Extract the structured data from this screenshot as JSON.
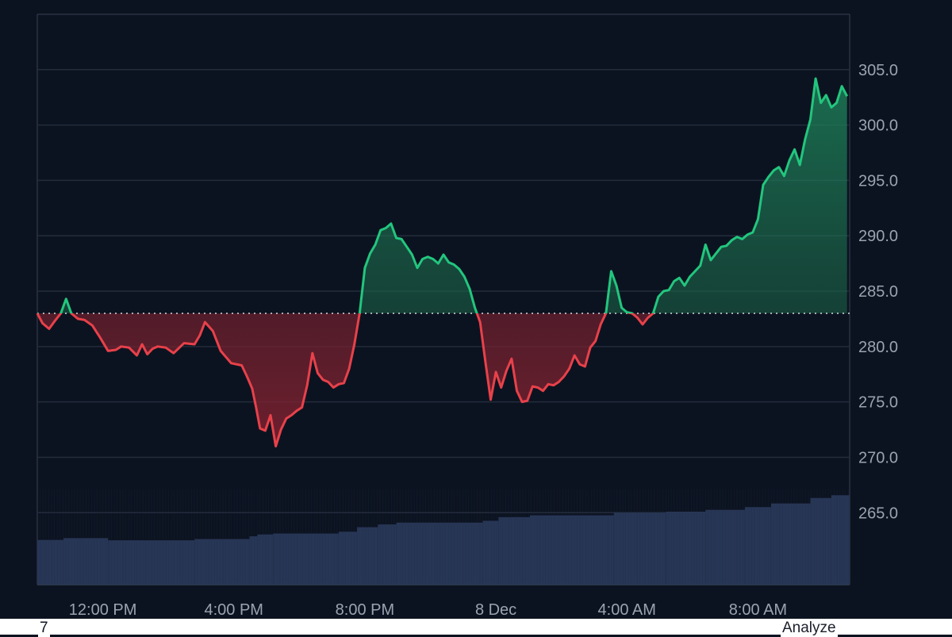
{
  "chart_data": {
    "type": "area",
    "baseline": 283.0,
    "ylim": [
      258.5,
      310.0
    ],
    "yticks": [
      265.0,
      270.0,
      275.0,
      280.0,
      285.0,
      290.0,
      295.0,
      300.0,
      305.0
    ],
    "xticks": [
      {
        "label": "12:00 PM",
        "t": 2.5
      },
      {
        "label": "4:00 PM",
        "t": 7.5
      },
      {
        "label": "8:00 PM",
        "t": 12.5
      },
      {
        "label": "8 Dec",
        "t": 17.5
      },
      {
        "label": "4:00 AM",
        "t": 22.5
      },
      {
        "label": "8:00 AM",
        "t": 27.5
      }
    ],
    "xrange": [
      0,
      31
    ],
    "series": [
      {
        "t": [
          0.0,
          0.2,
          0.45,
          0.7,
          0.9,
          1.1,
          1.3,
          1.55,
          1.8,
          2.1,
          2.4,
          2.7,
          3.0,
          3.2,
          3.5,
          3.8,
          4.0,
          4.2,
          4.4,
          4.6,
          4.9,
          5.2,
          5.6,
          6.0,
          6.2,
          6.4,
          6.7,
          7.0,
          7.4,
          7.8,
          8.0,
          8.2,
          8.35,
          8.5,
          8.7,
          8.9,
          9.1,
          9.3,
          9.5,
          9.7,
          9.9,
          10.1,
          10.3,
          10.5,
          10.7,
          10.9,
          11.1,
          11.3,
          11.5,
          11.7,
          11.9,
          12.1,
          12.3,
          12.5,
          12.7,
          12.9,
          13.1,
          13.3,
          13.5,
          13.7,
          13.9,
          14.1,
          14.3,
          14.5,
          14.7,
          14.9,
          15.1,
          15.3,
          15.5,
          15.7,
          15.9,
          16.1,
          16.3,
          16.5,
          16.7,
          16.9,
          17.1,
          17.3,
          17.5,
          17.7,
          17.9,
          18.1,
          18.3,
          18.5,
          18.7,
          18.9,
          19.1,
          19.3,
          19.5,
          19.7,
          19.9,
          20.1,
          20.3,
          20.5,
          20.7,
          20.9,
          21.1,
          21.3,
          21.5,
          21.7,
          21.9,
          22.1,
          22.3,
          22.5,
          22.7,
          22.9,
          23.1,
          23.3,
          23.5,
          23.7,
          23.9,
          24.1,
          24.3,
          24.5,
          24.7,
          24.9,
          25.1,
          25.3,
          25.5,
          25.7,
          25.9,
          26.1,
          26.3,
          26.5,
          26.7,
          26.9,
          27.1,
          27.3,
          27.5,
          27.7,
          27.9,
          28.1,
          28.3,
          28.5,
          28.7,
          28.9,
          29.1,
          29.3,
          29.5,
          29.7,
          29.9,
          30.1,
          30.3,
          30.5,
          30.7,
          30.9
        ],
        "v": [
          283.0,
          282.1,
          281.6,
          282.4,
          283.0,
          284.3,
          283.0,
          282.5,
          282.4,
          281.9,
          280.8,
          279.6,
          279.7,
          280.0,
          279.9,
          279.2,
          280.2,
          279.3,
          279.8,
          280.0,
          279.9,
          279.4,
          280.3,
          280.2,
          281.0,
          282.2,
          281.4,
          279.6,
          278.5,
          278.3,
          277.3,
          276.2,
          274.5,
          272.6,
          272.4,
          273.8,
          271.0,
          272.5,
          273.5,
          273.8,
          274.2,
          274.5,
          276.5,
          279.4,
          277.6,
          277.0,
          276.8,
          276.3,
          276.6,
          276.7,
          278.0,
          280.2,
          283.0,
          287.1,
          288.4,
          289.2,
          290.5,
          290.7,
          291.1,
          289.8,
          289.7,
          289.0,
          288.3,
          287.1,
          287.9,
          288.1,
          287.9,
          287.5,
          288.3,
          287.6,
          287.4,
          287.0,
          286.3,
          285.2,
          283.5,
          282.2,
          278.6,
          275.2,
          277.7,
          276.3,
          277.8,
          278.9,
          276.0,
          275.0,
          275.1,
          276.4,
          276.3,
          276.0,
          276.6,
          276.5,
          276.8,
          277.3,
          278.0,
          279.2,
          278.4,
          278.2,
          279.9,
          280.5,
          282.0,
          283.0,
          286.8,
          285.5,
          283.5,
          283.1,
          283.0,
          282.6,
          282.0,
          282.6,
          283.0,
          284.5,
          285.0,
          285.1,
          285.9,
          286.2,
          285.5,
          286.3,
          286.8,
          287.3,
          289.2,
          287.8,
          288.4,
          289.0,
          289.1,
          289.6,
          289.9,
          289.7,
          290.1,
          290.3,
          291.5,
          294.6,
          295.3,
          295.9,
          296.2,
          295.4,
          296.8,
          297.8,
          296.4,
          298.7,
          300.5,
          304.2,
          302.0,
          302.7,
          301.6,
          302.0,
          303.5,
          302.6
        ]
      }
    ],
    "volume": [
      {
        "t0": 0.0,
        "t1": 1.0,
        "v": 0.245
      },
      {
        "t0": 1.0,
        "t1": 2.7,
        "v": 0.255
      },
      {
        "t0": 2.7,
        "t1": 6.0,
        "v": 0.243
      },
      {
        "t0": 6.0,
        "t1": 8.1,
        "v": 0.25
      },
      {
        "t0": 8.1,
        "t1": 8.4,
        "v": 0.265
      },
      {
        "t0": 8.4,
        "t1": 9.0,
        "v": 0.275
      },
      {
        "t0": 9.0,
        "t1": 11.5,
        "v": 0.28
      },
      {
        "t0": 11.5,
        "t1": 12.2,
        "v": 0.29
      },
      {
        "t0": 12.2,
        "t1": 13.0,
        "v": 0.315
      },
      {
        "t0": 13.0,
        "t1": 13.7,
        "v": 0.33
      },
      {
        "t0": 13.7,
        "t1": 17.0,
        "v": 0.34
      },
      {
        "t0": 17.0,
        "t1": 17.6,
        "v": 0.35
      },
      {
        "t0": 17.6,
        "t1": 18.8,
        "v": 0.37
      },
      {
        "t0": 18.8,
        "t1": 22.0,
        "v": 0.38
      },
      {
        "t0": 22.0,
        "t1": 24.0,
        "v": 0.395
      },
      {
        "t0": 24.0,
        "t1": 25.5,
        "v": 0.4
      },
      {
        "t0": 25.5,
        "t1": 27.0,
        "v": 0.41
      },
      {
        "t0": 27.0,
        "t1": 28.0,
        "v": 0.425
      },
      {
        "t0": 28.0,
        "t1": 29.5,
        "v": 0.445
      },
      {
        "t0": 29.5,
        "t1": 30.3,
        "v": 0.475
      },
      {
        "t0": 30.3,
        "t1": 31.0,
        "v": 0.49
      }
    ],
    "colors": {
      "background": "#0c1320",
      "grid": "#232c3b",
      "up_line": "#22c67e",
      "down_line": "#e8414a",
      "up_fill": "#1c6b4d",
      "down_fill": "#6a1f2c",
      "volume": "#283656",
      "baseline_dots": "#d7dce4",
      "tick_text": "#9aa3b2"
    }
  },
  "footer": {
    "left_text": "7",
    "right_text": "Analyze"
  }
}
